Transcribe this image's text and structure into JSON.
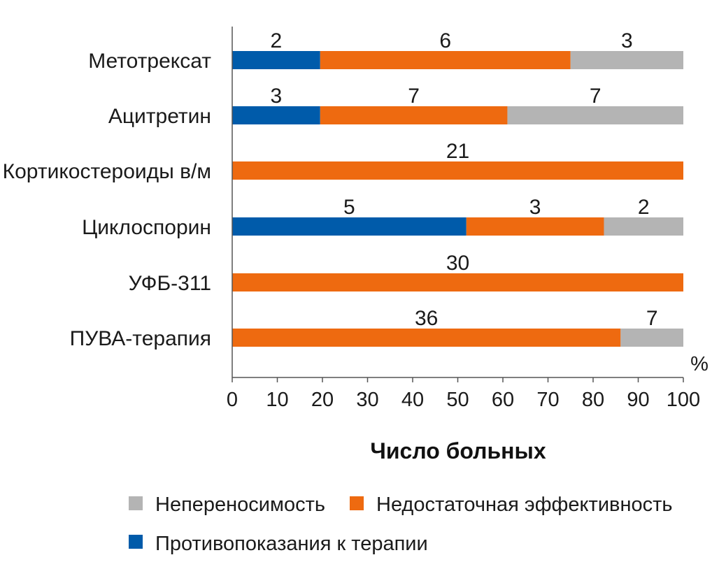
{
  "chart_data": {
    "type": "bar",
    "orientation": "horizontal",
    "stacked": true,
    "xlabel": "Число больных",
    "unit_label": "%",
    "xlim": [
      0,
      100
    ],
    "xticks": [
      0,
      10,
      20,
      30,
      40,
      50,
      60,
      70,
      80,
      90,
      100
    ],
    "categories": [
      "Метотрексат",
      "Ацитретин",
      "Кортикостероиды в/м",
      "Циклоспорин",
      "УФБ-311",
      "ПУВА-терапия"
    ],
    "series": [
      {
        "name": "Противопоказания к терапии",
        "color": "#005BAA",
        "values": [
          19.5,
          19.5,
          0,
          51.9,
          0,
          0
        ],
        "labels": [
          "2",
          "3",
          null,
          "5",
          null,
          null
        ]
      },
      {
        "name": "Недостаточная эффективность",
        "color": "#EE6A10",
        "values": [
          55.5,
          41.5,
          100,
          30.5,
          100,
          86.1
        ],
        "labels": [
          "6",
          "7",
          "21",
          "3",
          "30",
          "36"
        ]
      },
      {
        "name": "Непереносимость",
        "color": "#B4B4B4",
        "values": [
          25,
          39,
          0,
          17.6,
          0,
          13.9
        ],
        "labels": [
          "3",
          "7",
          null,
          "2",
          null,
          "7"
        ]
      }
    ],
    "legend": [
      {
        "name": "Непереносимость",
        "color": "#B4B4B4"
      },
      {
        "name": "Недостаточная эффективность",
        "color": "#EE6A10"
      },
      {
        "name": "Противопоказания к терапии",
        "color": "#005BAA"
      }
    ]
  }
}
